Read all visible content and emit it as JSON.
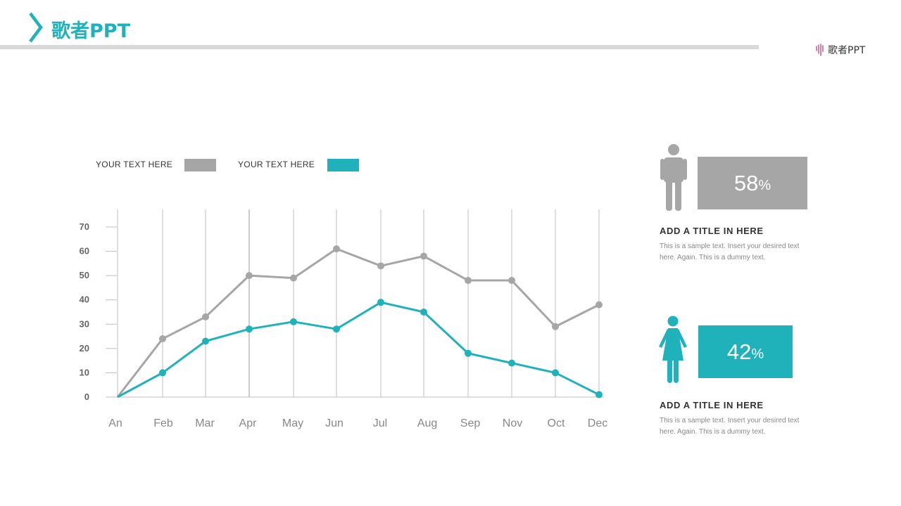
{
  "header": {
    "title": "歌者PPT"
  },
  "brand": {
    "text": "歌者PPT"
  },
  "colors": {
    "accent": "#20b2bb",
    "gray": "#a6a6a6"
  },
  "legend": [
    {
      "label": "YOUR TEXT  HERE",
      "color": "#a6a6a6"
    },
    {
      "label": "YOUR TEXT  HERE",
      "color": "#20b2bb"
    }
  ],
  "chart_data": {
    "type": "line",
    "categories": [
      "An",
      "Feb",
      "Mar",
      "Apr",
      "May",
      "Jun",
      "Jul",
      "Aug",
      "Sep",
      "Nov",
      "Oct",
      "Dec"
    ],
    "yticks": [
      0,
      10,
      20,
      30,
      40,
      50,
      60,
      70
    ],
    "ylim": [
      0,
      70
    ],
    "grid": "vertical",
    "legend_position": "top-left",
    "series": [
      {
        "color": "#a6a6a6",
        "values": [
          0,
          24,
          33,
          50,
          49,
          61,
          54,
          58,
          48,
          48,
          29,
          38
        ]
      },
      {
        "color": "#20b2bb",
        "values": [
          0,
          10,
          23,
          28,
          31,
          28,
          39,
          35,
          18,
          14,
          10,
          1
        ]
      }
    ]
  },
  "cards": [
    {
      "figure": "male-figure-icon",
      "color": "#a6a6a6",
      "percent": "58",
      "percent_sign": "%",
      "title": "ADD  A  TITLE  IN HERE",
      "text": "This is a sample text. Insert your desired text here. Again. This is a dummy text."
    },
    {
      "figure": "female-figure-icon",
      "color": "#20b2bb",
      "percent": "42",
      "percent_sign": "%",
      "title": "ADD  A  TITLE  IN HERE",
      "text": "This is a sample text. Insert your desired text here. Again. This is a dummy text."
    }
  ]
}
